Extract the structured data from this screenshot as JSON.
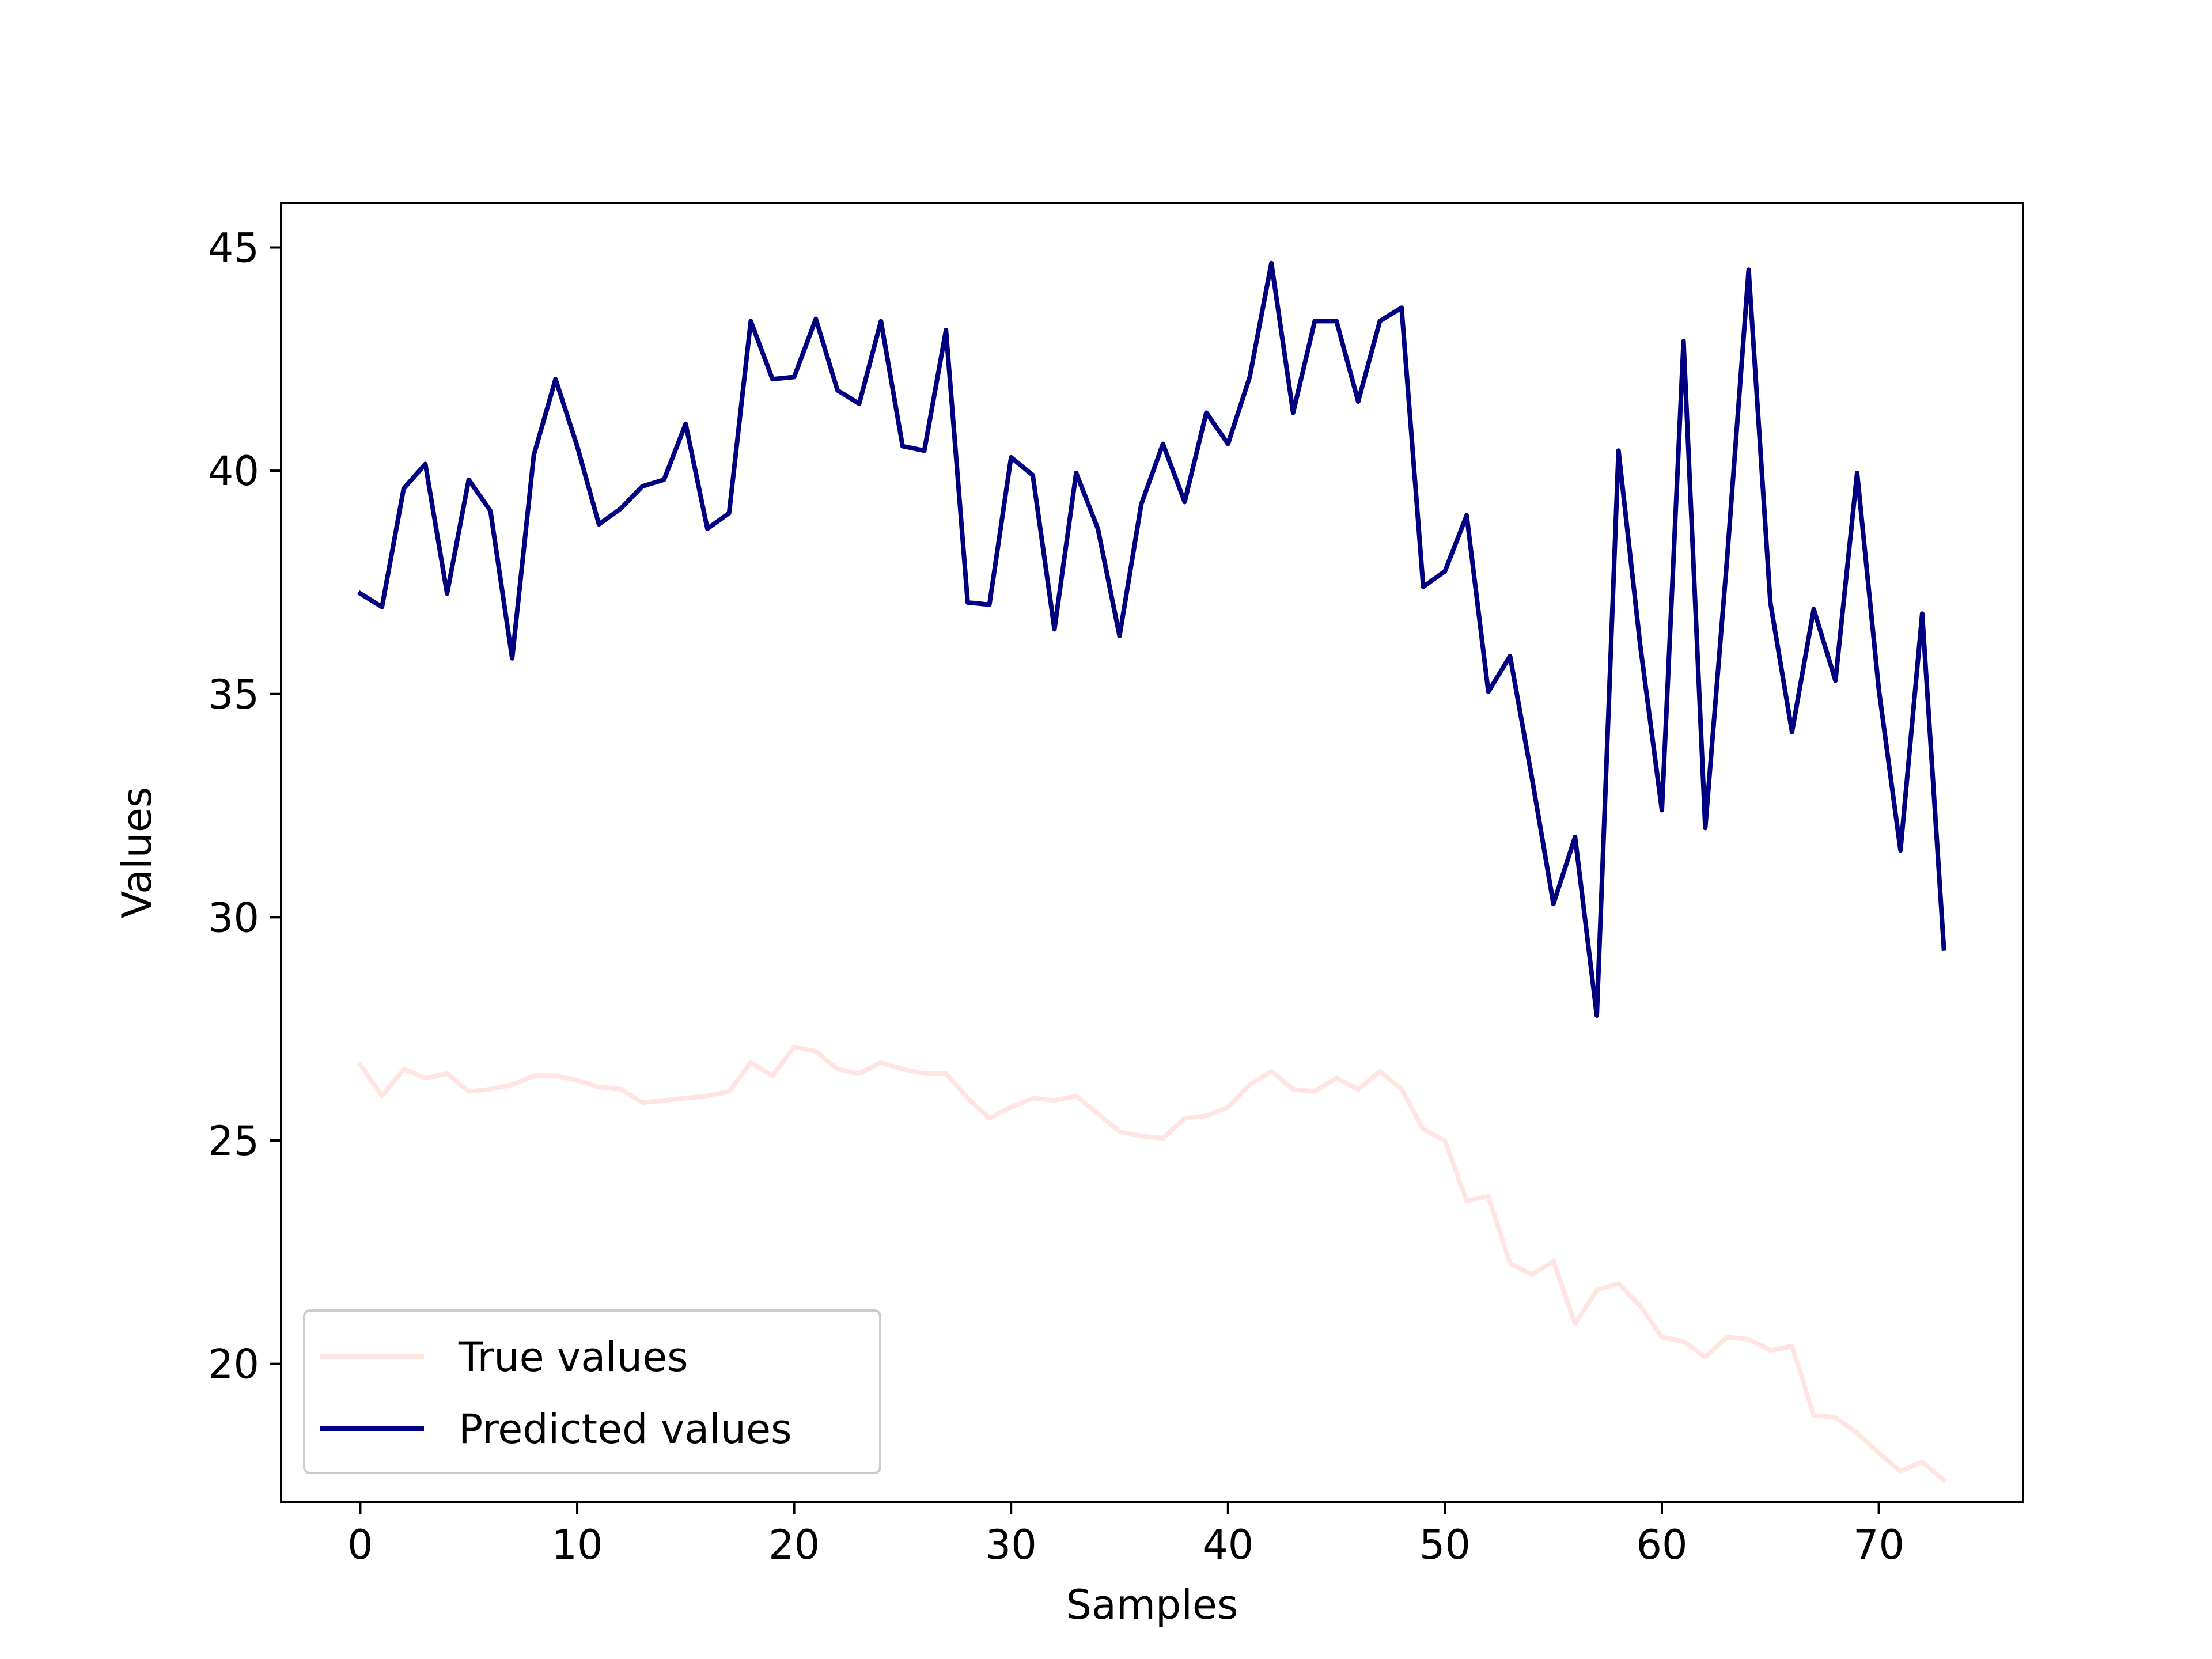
{
  "chart_data": {
    "type": "line",
    "title": "",
    "xlabel": "Samples",
    "ylabel": "Values",
    "xlim": [
      -3.65,
      76.65
    ],
    "ylim": [
      16.9,
      46.0
    ],
    "x_ticks": [
      0,
      10,
      20,
      30,
      40,
      50,
      60,
      70
    ],
    "y_ticks": [
      20,
      25,
      30,
      35,
      40,
      45
    ],
    "grid": false,
    "legend_position": "lower-left",
    "series": [
      {
        "name": "True values",
        "color": "#ffe4e1",
        "values": [
          26.7,
          26.0,
          26.6,
          26.4,
          26.5,
          26.1,
          26.15,
          26.25,
          26.45,
          26.45,
          26.35,
          26.2,
          26.15,
          25.85,
          25.9,
          25.95,
          26.0,
          26.1,
          26.75,
          26.45,
          27.1,
          27.0,
          26.6,
          26.5,
          26.75,
          26.6,
          26.5,
          26.5,
          25.95,
          25.5,
          25.75,
          25.95,
          25.9,
          26.0,
          25.6,
          25.2,
          25.1,
          25.05,
          25.5,
          25.55,
          25.75,
          26.25,
          26.55,
          26.15,
          26.1,
          26.4,
          26.15,
          26.55,
          26.15,
          25.25,
          25.0,
          23.65,
          23.75,
          22.25,
          22.0,
          22.3,
          20.9,
          21.65,
          21.8,
          21.3,
          20.6,
          20.5,
          20.15,
          20.6,
          20.55,
          20.3,
          20.4,
          18.85,
          18.8,
          18.45,
          18.0,
          17.6,
          17.8,
          17.4
        ]
      },
      {
        "name": "Predicted values",
        "color": "#000080",
        "values": [
          37.25,
          36.95,
          39.6,
          40.15,
          37.25,
          39.8,
          39.1,
          35.8,
          40.35,
          42.05,
          40.55,
          38.8,
          39.15,
          39.65,
          39.8,
          41.05,
          38.7,
          39.05,
          43.35,
          42.05,
          42.1,
          43.4,
          41.8,
          41.5,
          43.35,
          40.55,
          40.45,
          43.15,
          37.05,
          37.0,
          40.3,
          39.9,
          36.45,
          39.95,
          38.7,
          36.3,
          39.25,
          40.6,
          39.3,
          41.3,
          40.6,
          42.1,
          44.65,
          41.3,
          43.35,
          43.35,
          41.55,
          43.35,
          43.65,
          37.4,
          37.75,
          39.0,
          35.05,
          35.85,
          33.15,
          30.3,
          31.8,
          27.8,
          40.45,
          36.1,
          32.4,
          42.9,
          32.0,
          38.0,
          44.5,
          37.05,
          34.15,
          36.9,
          35.3,
          39.95,
          35.1,
          31.5,
          36.8,
          29.3
        ]
      }
    ]
  }
}
